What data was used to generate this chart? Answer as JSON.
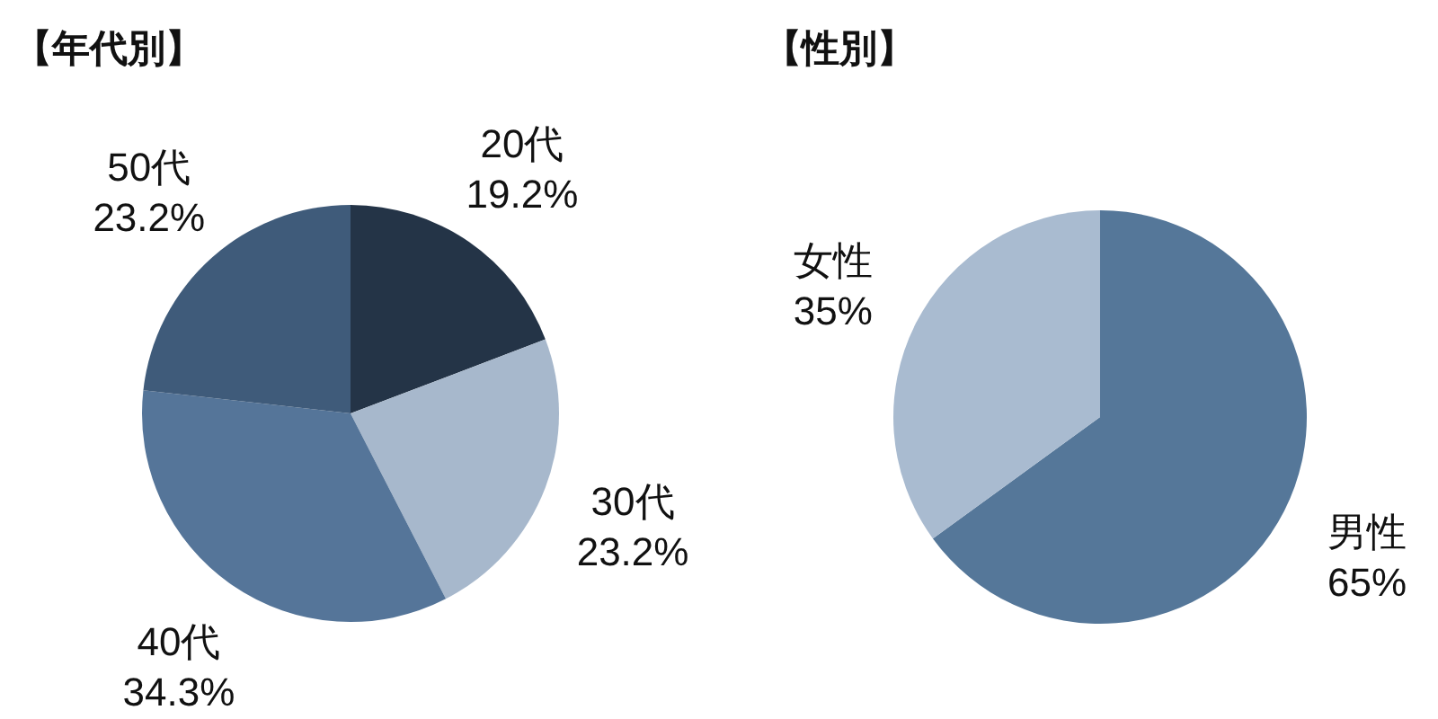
{
  "chart_data": [
    {
      "type": "pie",
      "title": "【年代別】",
      "categories": [
        "20代",
        "30代",
        "40代",
        "50代"
      ],
      "values": [
        19.2,
        23.2,
        34.3,
        23.2
      ],
      "value_labels": [
        "19.2%",
        "23.2%",
        "34.3%",
        "23.2%"
      ],
      "colors": [
        "#243447",
        "#a7b8cc",
        "#557599",
        "#3f5b7a"
      ]
    },
    {
      "type": "pie",
      "title": "【性別】",
      "categories": [
        "男性",
        "女性"
      ],
      "values": [
        65,
        35
      ],
      "value_labels": [
        "65%",
        "35%"
      ],
      "colors": [
        "#557799",
        "#a9bbd0"
      ]
    }
  ]
}
